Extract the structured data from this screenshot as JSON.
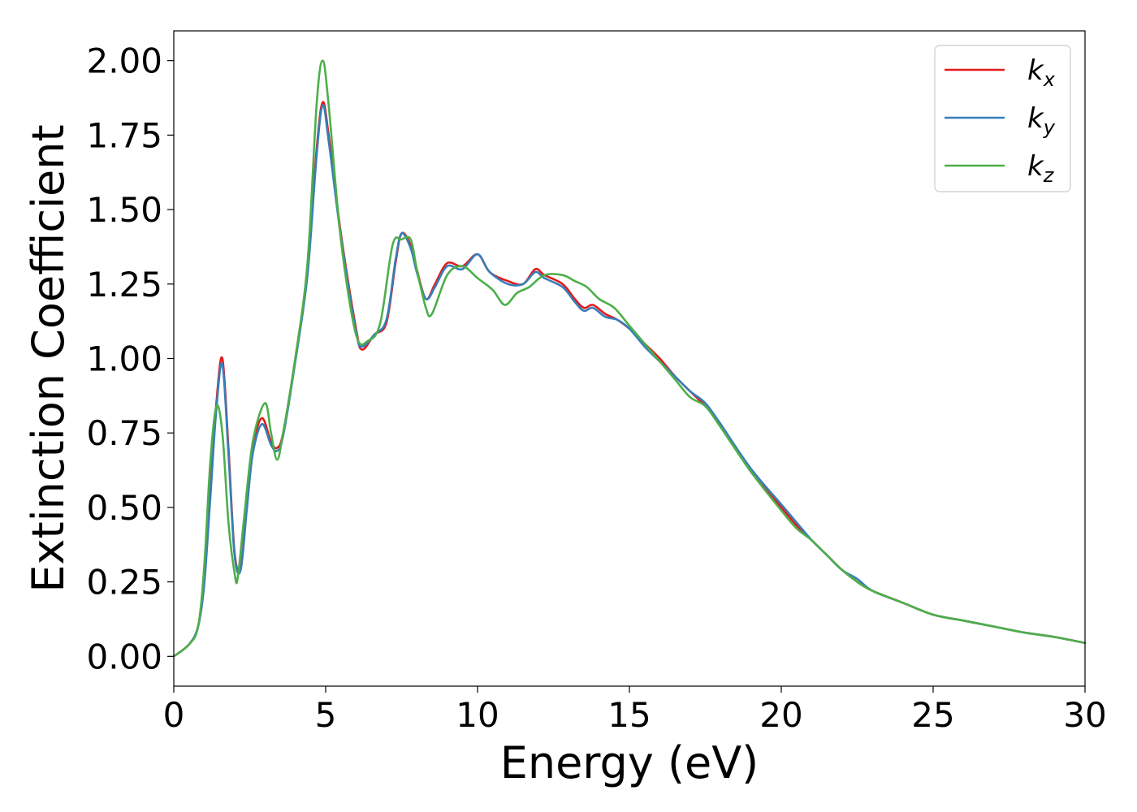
{
  "chart_data": {
    "type": "line",
    "title": "",
    "xlabel": "Energy (eV)",
    "ylabel": "Extinction Coefficient",
    "xlim": [
      0,
      30
    ],
    "ylim": [
      -0.1,
      2.1
    ],
    "xticks": [
      0,
      5,
      10,
      15,
      20,
      25,
      30
    ],
    "xtick_labels": [
      "0",
      "5",
      "10",
      "15",
      "20",
      "25",
      "30"
    ],
    "yticks": [
      0.0,
      0.25,
      0.5,
      0.75,
      1.0,
      1.25,
      1.5,
      1.75,
      2.0
    ],
    "ytick_labels": [
      "0.00",
      "0.25",
      "0.50",
      "0.75",
      "1.00",
      "1.25",
      "1.50",
      "1.75",
      "2.00"
    ],
    "grid": false,
    "legend_position": "top-right",
    "series": [
      {
        "name": "k",
        "subscript": "x",
        "color": "#e41a1c",
        "x": [
          0,
          0.5,
          0.8,
          1.0,
          1.2,
          1.4,
          1.6,
          1.8,
          2.0,
          2.2,
          2.4,
          2.6,
          2.9,
          3.2,
          3.4,
          3.6,
          4.0,
          4.4,
          4.7,
          4.9,
          5.1,
          5.5,
          6.0,
          6.2,
          6.6,
          7.0,
          7.3,
          7.5,
          7.8,
          8.0,
          8.3,
          8.6,
          9.0,
          9.5,
          10.0,
          10.4,
          11.0,
          11.5,
          11.9,
          12.2,
          12.8,
          13.2,
          13.5,
          13.8,
          14.2,
          14.6,
          15.0,
          15.5,
          16.0,
          16.5,
          17.0,
          17.5,
          18.0,
          19.0,
          20.0,
          20.5,
          21.0,
          21.5,
          22.0,
          22.5,
          23.0,
          24.0,
          25.0,
          26.0,
          27.0,
          28.0,
          29.0,
          30.0
        ],
        "y": [
          0,
          0.04,
          0.1,
          0.25,
          0.55,
          0.85,
          1.0,
          0.7,
          0.35,
          0.3,
          0.5,
          0.7,
          0.8,
          0.72,
          0.7,
          0.75,
          1.0,
          1.3,
          1.7,
          1.86,
          1.75,
          1.42,
          1.1,
          1.03,
          1.08,
          1.12,
          1.32,
          1.42,
          1.38,
          1.3,
          1.2,
          1.25,
          1.32,
          1.31,
          1.35,
          1.29,
          1.26,
          1.25,
          1.3,
          1.28,
          1.25,
          1.2,
          1.17,
          1.18,
          1.15,
          1.13,
          1.1,
          1.05,
          1.0,
          0.94,
          0.89,
          0.84,
          0.78,
          0.62,
          0.5,
          0.44,
          0.39,
          0.34,
          0.29,
          0.25,
          0.22,
          0.18,
          0.14,
          0.12,
          0.1,
          0.08,
          0.065,
          0.045
        ]
      },
      {
        "name": "k",
        "subscript": "y",
        "color": "#377eb8",
        "x": [
          0,
          0.5,
          0.8,
          1.0,
          1.2,
          1.4,
          1.6,
          1.8,
          2.0,
          2.2,
          2.4,
          2.6,
          2.9,
          3.2,
          3.4,
          3.6,
          4.0,
          4.4,
          4.7,
          4.9,
          5.1,
          5.5,
          6.0,
          6.2,
          6.6,
          7.0,
          7.3,
          7.5,
          7.8,
          8.0,
          8.3,
          8.6,
          9.0,
          9.5,
          10.0,
          10.4,
          11.0,
          11.5,
          11.9,
          12.2,
          12.8,
          13.2,
          13.5,
          13.8,
          14.2,
          14.6,
          15.0,
          15.5,
          16.0,
          16.5,
          17.0,
          17.5,
          18.0,
          19.0,
          20.0,
          20.5,
          21.0,
          21.5,
          22.0,
          22.5,
          23.0,
          24.0,
          25.0,
          26.0,
          27.0,
          28.0,
          29.0,
          30.0
        ],
        "y": [
          0,
          0.04,
          0.1,
          0.24,
          0.53,
          0.83,
          0.98,
          0.68,
          0.34,
          0.29,
          0.49,
          0.68,
          0.78,
          0.71,
          0.69,
          0.74,
          0.99,
          1.28,
          1.68,
          1.85,
          1.73,
          1.41,
          1.09,
          1.04,
          1.08,
          1.13,
          1.33,
          1.42,
          1.37,
          1.29,
          1.2,
          1.24,
          1.31,
          1.3,
          1.35,
          1.29,
          1.25,
          1.25,
          1.29,
          1.27,
          1.24,
          1.19,
          1.16,
          1.17,
          1.14,
          1.13,
          1.1,
          1.04,
          0.99,
          0.94,
          0.89,
          0.85,
          0.78,
          0.63,
          0.51,
          0.45,
          0.39,
          0.34,
          0.29,
          0.26,
          0.22,
          0.18,
          0.14,
          0.12,
          0.1,
          0.08,
          0.065,
          0.045
        ]
      },
      {
        "name": "k",
        "subscript": "z",
        "color": "#4daf4a",
        "x": [
          0,
          0.5,
          0.8,
          1.0,
          1.2,
          1.4,
          1.6,
          1.8,
          2.0,
          2.1,
          2.3,
          2.6,
          3.0,
          3.2,
          3.4,
          3.6,
          4.0,
          4.4,
          4.7,
          4.9,
          5.1,
          5.5,
          6.0,
          6.4,
          6.8,
          7.2,
          7.5,
          7.8,
          8.0,
          8.3,
          8.5,
          9.0,
          9.5,
          10.0,
          10.5,
          10.9,
          11.3,
          11.7,
          12.2,
          12.8,
          13.2,
          13.6,
          14.0,
          14.5,
          15.0,
          15.5,
          16.0,
          16.5,
          17.0,
          17.5,
          18.0,
          19.0,
          20.0,
          20.5,
          21.0,
          21.5,
          22.0,
          22.5,
          23.0,
          24.0,
          25.0,
          26.0,
          27.0,
          28.0,
          29.0,
          30.0
        ],
        "y": [
          0,
          0.04,
          0.1,
          0.3,
          0.65,
          0.84,
          0.75,
          0.45,
          0.28,
          0.26,
          0.45,
          0.72,
          0.85,
          0.75,
          0.66,
          0.75,
          1.0,
          1.32,
          1.85,
          2.0,
          1.85,
          1.4,
          1.08,
          1.06,
          1.12,
          1.38,
          1.4,
          1.4,
          1.3,
          1.17,
          1.15,
          1.28,
          1.31,
          1.27,
          1.23,
          1.18,
          1.22,
          1.24,
          1.28,
          1.28,
          1.26,
          1.24,
          1.2,
          1.17,
          1.11,
          1.05,
          0.99,
          0.93,
          0.87,
          0.84,
          0.77,
          0.62,
          0.49,
          0.43,
          0.39,
          0.34,
          0.29,
          0.25,
          0.22,
          0.18,
          0.14,
          0.12,
          0.1,
          0.08,
          0.065,
          0.045
        ]
      }
    ]
  }
}
